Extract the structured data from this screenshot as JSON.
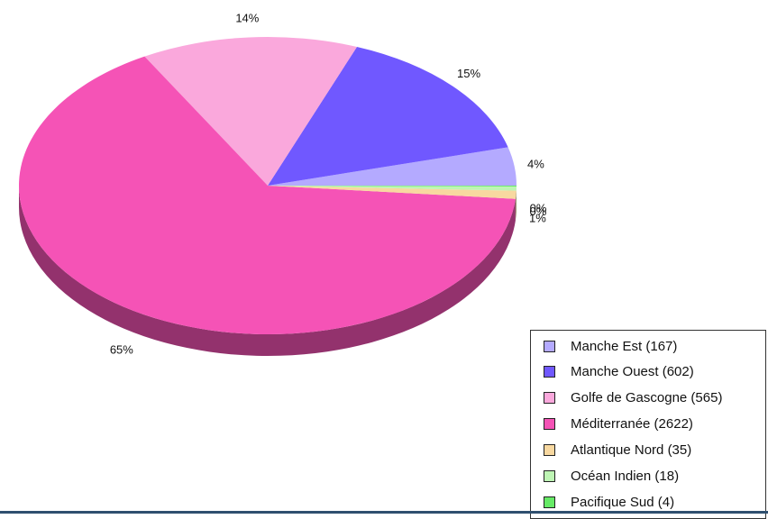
{
  "chart_data": {
    "type": "pie",
    "categories": [
      "Manche Est",
      "Manche Ouest",
      "Golfe de Gascogne",
      "Méditerranée",
      "Atlantique Nord",
      "Océan Indien",
      "Pacifique Sud"
    ],
    "values": [
      167,
      602,
      565,
      2622,
      35,
      18,
      4
    ],
    "colors": [
      "#B4AAFF",
      "#7058FF",
      "#FAA8DC",
      "#F553B6",
      "#F8D8A0",
      "#BEF5B4",
      "#66EA66"
    ],
    "percent_labels": [
      "4%",
      "15%",
      "14%",
      "65%",
      "1%",
      "0%",
      "0%"
    ],
    "legend_labels": [
      "Manche Est (167)",
      "Manche Ouest (602)",
      "Golfe de Gascogne (565)",
      "Méditerranée (2622)",
      "Atlantique Nord (35)",
      "Océan Indien (18)",
      "Pacifique Sud (4)"
    ],
    "legend_position": "bottom-right",
    "style": "3d"
  }
}
